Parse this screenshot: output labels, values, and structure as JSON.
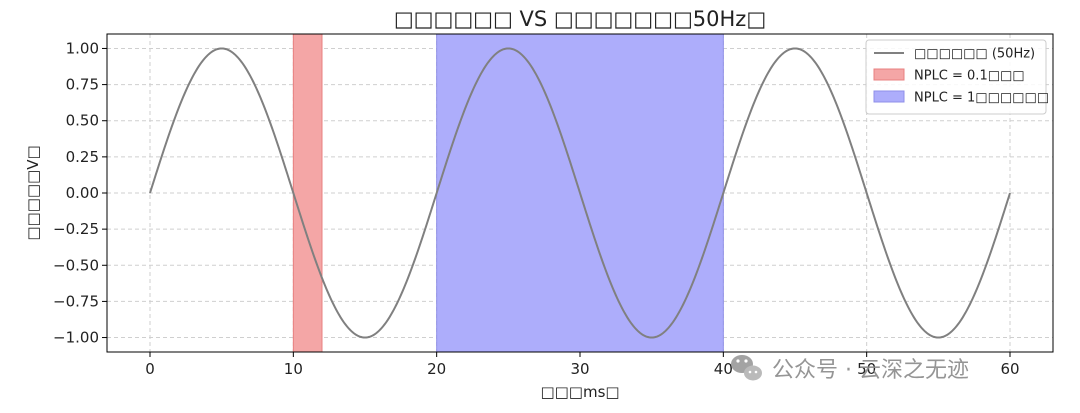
{
  "chart_data": {
    "type": "line",
    "title": "□□□□□□ VS □□□□□□□50Hz□",
    "xlabel": "□□□ms□",
    "ylabel": "□□□□□V□",
    "xlim": [
      -3,
      63
    ],
    "ylim": [
      -1.1,
      1.1
    ],
    "xticks": [
      0,
      10,
      20,
      30,
      40,
      50,
      60
    ],
    "yticks": [
      -1.0,
      -0.75,
      -0.5,
      -0.25,
      0.0,
      0.25,
      0.5,
      0.75,
      1.0
    ],
    "grid": true,
    "legend_position": "top-right",
    "series": [
      {
        "name": "□□□□□□ (50Hz)",
        "color": "#808080",
        "frequency_hz": 50,
        "amplitude": 1.0,
        "x_range_ms": [
          0,
          60
        ]
      }
    ],
    "spans": [
      {
        "name": "NPLC = 0.1□□□",
        "x0": 10,
        "x1": 12,
        "color": "#f4a6a6",
        "edge": "#e88080"
      },
      {
        "name": "NPLC = 1□□□□□□",
        "x0": 20,
        "x1": 40,
        "color": "#adadfb",
        "edge": "#8f8fe8"
      }
    ]
  },
  "watermark": {
    "icon": "wechat-icon",
    "text": "公众号 · 云深之无迹"
  }
}
